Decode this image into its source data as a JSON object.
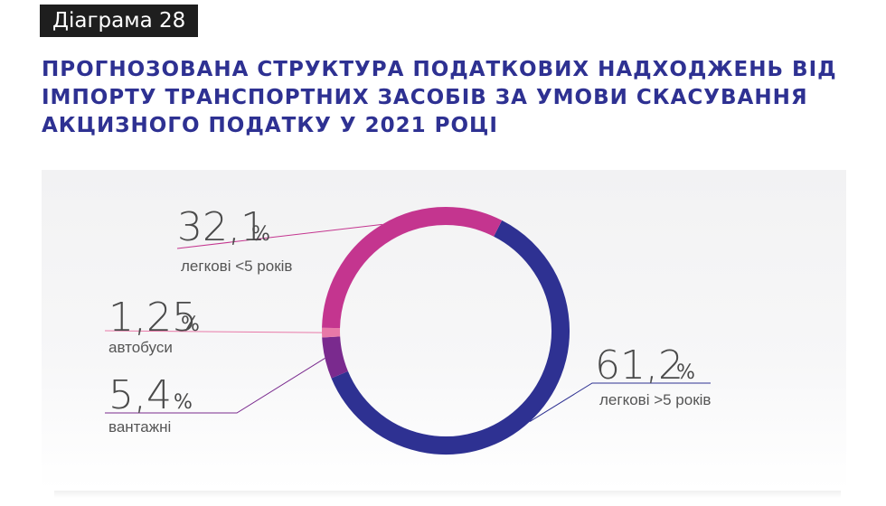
{
  "header": {
    "tag": "Діаграма 28",
    "title_lines": [
      "ПРОГНОЗОВАНА СТРУКТУРА ПОДАТКОВИХ НАДХОДЖЕНЬ ВІД",
      "ІМПОРТУ ТРАНСПОРТНИХ ЗАСОБІВ ЗА УМОВИ СКАСУВАННЯ",
      "АКЦИЗНОГО ПОДАТКУ У 2021 РОЦІ"
    ]
  },
  "chart_data": {
    "type": "pie",
    "donut": true,
    "unit": "%",
    "slices": [
      {
        "value_text": "61,2",
        "value": 61.2,
        "label": "легкові >5 років",
        "color": "#2e3192"
      },
      {
        "value_text": "5,4",
        "value": 5.4,
        "label": "вантажні",
        "color": "#7a2a8e"
      },
      {
        "value_text": "1,25",
        "value": 1.25,
        "label": "автобуси",
        "color": "#e879a8"
      },
      {
        "value_text": "32,1",
        "value": 32.1,
        "label": "легкові <5 років",
        "color": "#c4358f"
      }
    ],
    "leader_colors": {
      "легкові <5 років": "#c4358f",
      "автобуси": "#e879a8",
      "вантажні": "#7a2a8e",
      "легкові >5 років": "#2e3192"
    }
  }
}
